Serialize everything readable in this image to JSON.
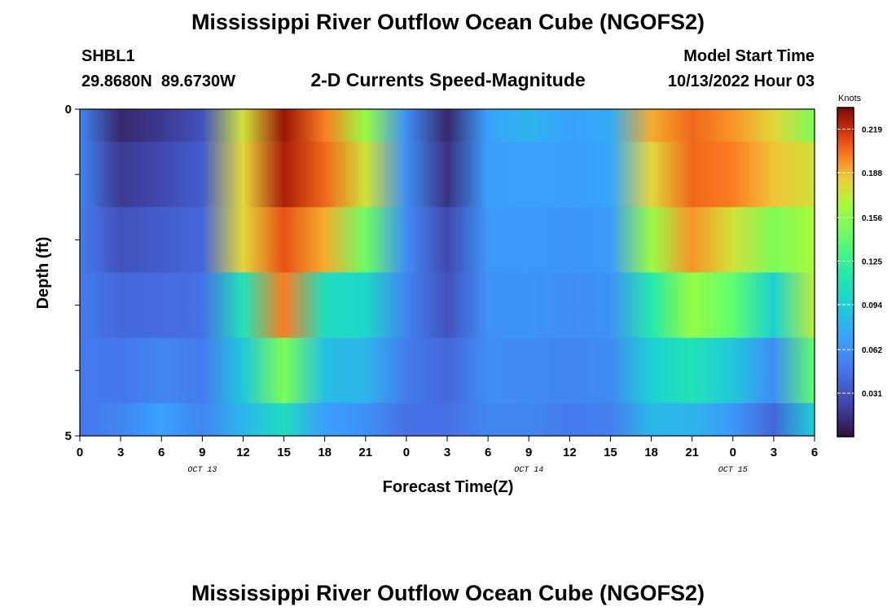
{
  "header": {
    "title": "Mississippi River Outflow Ocean Cube (NGOFS2)",
    "station_id": "SHBL1",
    "coords": "29.8680N  89.6730W",
    "subtitle": "2-D Currents Speed-Magnitude",
    "model_start_label": "Model Start Time",
    "model_start_value": "10/13/2022 Hour 03"
  },
  "footer": {
    "title": "Mississippi River Outflow Ocean Cube (NGOFS2)"
  },
  "chart_data": {
    "type": "heatmap",
    "xlabel": "Forecast Time(Z)",
    "ylabel": "Depth (ft)",
    "x_tick_labels": [
      "0",
      "3",
      "6",
      "9",
      "12",
      "15",
      "18",
      "21",
      "0",
      "3",
      "6",
      "9",
      "12",
      "15",
      "18",
      "21",
      "0",
      "3",
      "6"
    ],
    "day_labels": [
      {
        "label": "OCT 13",
        "at_tick": 3
      },
      {
        "label": "OCT 14",
        "at_tick": 11
      },
      {
        "label": "OCT 15",
        "at_tick": 16
      }
    ],
    "y_tick_labels": [
      {
        "value": 0,
        "label": "0"
      },
      {
        "value": 5,
        "label": "5"
      }
    ],
    "ylim": [
      0,
      5
    ],
    "colorbar": {
      "unit": "Knots",
      "min": 0.0,
      "max": 0.2344,
      "ticks": [
        "0.219",
        "0.188",
        "0.156",
        "0.125",
        "0.094",
        "0.062",
        "0.031"
      ],
      "tick_values": [
        0.219,
        0.188,
        0.156,
        0.125,
        0.094,
        0.062,
        0.031
      ]
    },
    "time_hours": [
      0,
      3,
      6,
      9,
      12,
      15,
      18,
      21,
      24,
      27,
      30,
      33,
      36,
      39,
      42,
      45,
      48,
      51,
      54
    ],
    "layers": [
      {
        "depth_band": "0.0-0.5",
        "values": [
          0.055,
          0.01,
          0.018,
          0.03,
          0.175,
          0.228,
          0.2,
          0.16,
          0.06,
          0.01,
          0.07,
          0.08,
          0.07,
          0.075,
          0.19,
          0.205,
          0.195,
          0.18,
          0.15
        ]
      },
      {
        "depth_band": "0.5-1.5",
        "values": [
          0.055,
          0.018,
          0.025,
          0.035,
          0.18,
          0.225,
          0.205,
          0.175,
          0.06,
          0.015,
          0.068,
          0.07,
          0.068,
          0.072,
          0.18,
          0.205,
          0.2,
          0.185,
          0.175
        ]
      },
      {
        "depth_band": "1.5-2.5",
        "values": [
          0.05,
          0.03,
          0.035,
          0.04,
          0.18,
          0.21,
          0.19,
          0.145,
          0.06,
          0.025,
          0.065,
          0.066,
          0.064,
          0.066,
          0.16,
          0.195,
          0.175,
          0.15,
          0.165
        ]
      },
      {
        "depth_band": "2.5-3.5",
        "values": [
          0.05,
          0.04,
          0.042,
          0.045,
          0.11,
          0.2,
          0.105,
          0.1,
          0.055,
          0.03,
          0.062,
          0.063,
          0.06,
          0.062,
          0.115,
          0.16,
          0.14,
          0.095,
          0.17
        ]
      },
      {
        "depth_band": "3.5-4.5",
        "values": [
          0.05,
          0.048,
          0.055,
          0.05,
          0.09,
          0.15,
          0.085,
          0.08,
          0.05,
          0.04,
          0.06,
          0.058,
          0.055,
          0.058,
          0.095,
          0.11,
          0.09,
          0.06,
          0.14
        ]
      },
      {
        "depth_band": "4.5-5.0",
        "values": [
          0.048,
          0.055,
          0.07,
          0.055,
          0.08,
          0.105,
          0.068,
          0.062,
          0.045,
          0.045,
          0.055,
          0.055,
          0.05,
          0.052,
          0.082,
          0.08,
          0.065,
          0.04,
          0.095
        ]
      }
    ]
  }
}
